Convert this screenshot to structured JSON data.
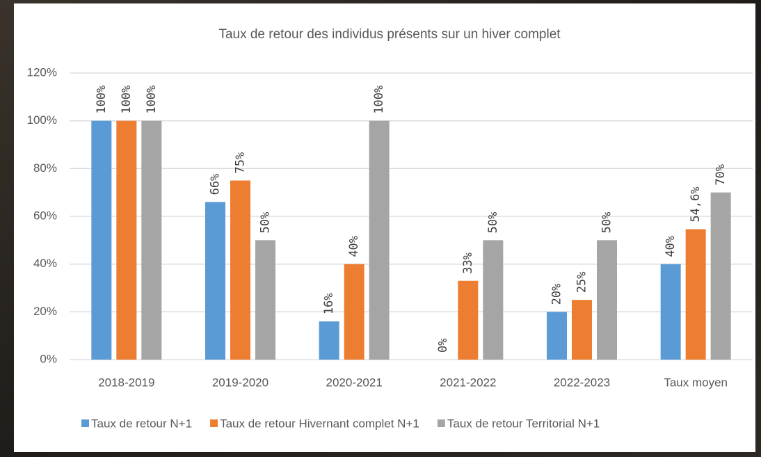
{
  "chart_data": {
    "type": "bar",
    "title": "Taux de retour des individus présents sur un hiver complet",
    "categories": [
      "2018-2019",
      "2019-2020",
      "2020-2021",
      "2021-2022",
      "2022-2023",
      "Taux moyen"
    ],
    "series": [
      {
        "name": "Taux de retour N+1",
        "color": "#5b9bd5",
        "values": [
          100,
          66,
          16,
          0,
          20,
          40
        ],
        "value_labels": [
          "100%",
          "66%",
          "16%",
          "0%",
          "20%",
          "40%"
        ]
      },
      {
        "name": "Taux de retour Hivernant complet N+1",
        "color": "#ed7d31",
        "values": [
          100,
          75,
          40,
          33,
          25,
          54.6
        ],
        "value_labels": [
          "100%",
          "75%",
          "40%",
          "33%",
          "25%",
          "54,6%"
        ]
      },
      {
        "name": "Taux de retour Territorial N+1",
        "color": "#a5a5a5",
        "values": [
          100,
          50,
          100,
          50,
          50,
          70
        ],
        "value_labels": [
          "100%",
          "50%",
          "100%",
          "50%",
          "50%",
          "70%"
        ]
      }
    ],
    "ylim": [
      0,
      120
    ],
    "yticks": [
      {
        "value": 0,
        "label": "0%"
      },
      {
        "value": 20,
        "label": "20%"
      },
      {
        "value": 40,
        "label": "40%"
      },
      {
        "value": 60,
        "label": "60%"
      },
      {
        "value": 80,
        "label": "80%"
      },
      {
        "value": 100,
        "label": "100%"
      },
      {
        "value": 120,
        "label": "120%"
      }
    ],
    "grid": true,
    "legend": "bottom"
  }
}
